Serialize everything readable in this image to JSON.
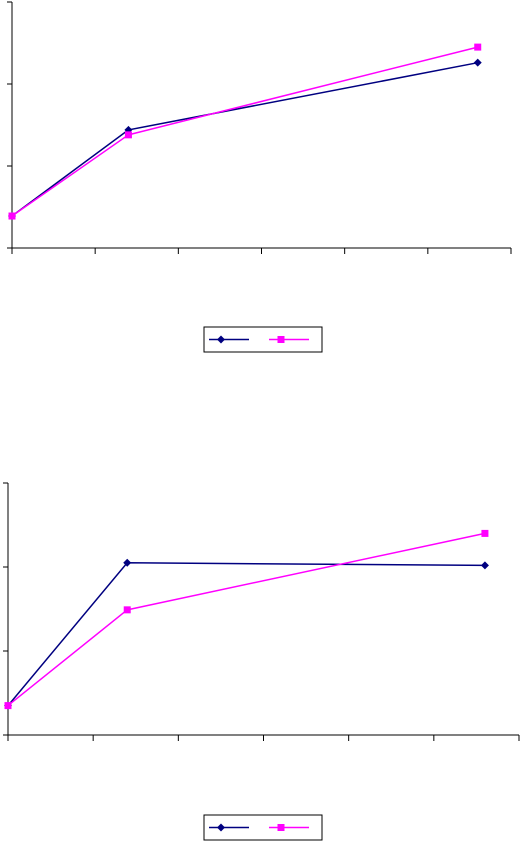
{
  "chart_data": [
    {
      "type": "line",
      "x": [
        0,
        1.4,
        5.6
      ],
      "xlim": [
        0,
        6
      ],
      "xticks": [
        0,
        1,
        2,
        3,
        4,
        5,
        6
      ],
      "ylim": [
        0,
        3
      ],
      "yticks": [
        0,
        1,
        2,
        3
      ],
      "legend": "bottom",
      "series": [
        {
          "color": "#000080",
          "marker": "diamond",
          "values": [
            0.39,
            1.44,
            2.26
          ]
        },
        {
          "color": "#ff00ff",
          "marker": "square",
          "values": [
            0.39,
            1.38,
            2.45
          ]
        }
      ]
    },
    {
      "type": "line",
      "x": [
        0,
        1.4,
        5.6
      ],
      "xlim": [
        0,
        6
      ],
      "xticks": [
        0,
        1,
        2,
        3,
        4,
        5,
        6
      ],
      "ylim": [
        0,
        3
      ],
      "yticks": [
        0,
        1,
        2,
        3
      ],
      "legend": "bottom",
      "series": [
        {
          "color": "#000080",
          "marker": "diamond",
          "values": [
            0.35,
            2.05,
            2.02
          ]
        },
        {
          "color": "#ff00ff",
          "marker": "square",
          "values": [
            0.35,
            1.49,
            2.4
          ]
        }
      ]
    }
  ]
}
